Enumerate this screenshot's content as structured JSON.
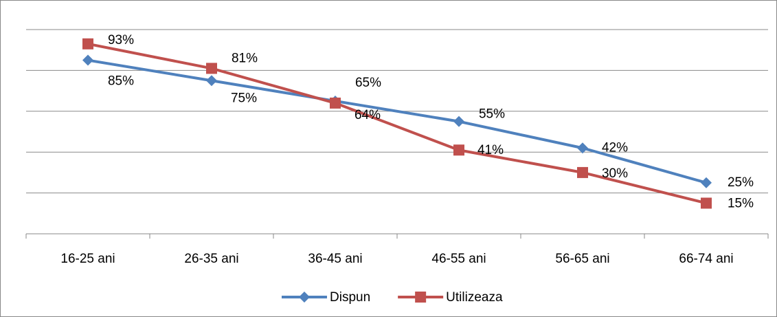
{
  "chart_data": {
    "type": "line",
    "categories": [
      "16-25 ani",
      "26-35 ani",
      "36-45 ani",
      "46-55 ani",
      "56-65 ani",
      "66-74 ani"
    ],
    "series": [
      {
        "name": "Dispun",
        "color": "#4f81bd",
        "marker": "diamond",
        "values": [
          85,
          75,
          65,
          55,
          42,
          25
        ],
        "value_labels": [
          "85%",
          "75%",
          "65%",
          "55%",
          "42%",
          "25%"
        ]
      },
      {
        "name": "Utilizeaza",
        "color": "#c0504d",
        "marker": "square",
        "values": [
          93,
          81,
          64,
          41,
          30,
          15
        ],
        "value_labels": [
          "93%",
          "81%",
          "64%",
          "41%",
          "30%",
          "15%"
        ]
      }
    ],
    "ylim": [
      0,
      100
    ],
    "yticks": [
      0,
      20,
      40,
      60,
      80,
      100
    ],
    "grid": true,
    "legend": "bottom"
  }
}
